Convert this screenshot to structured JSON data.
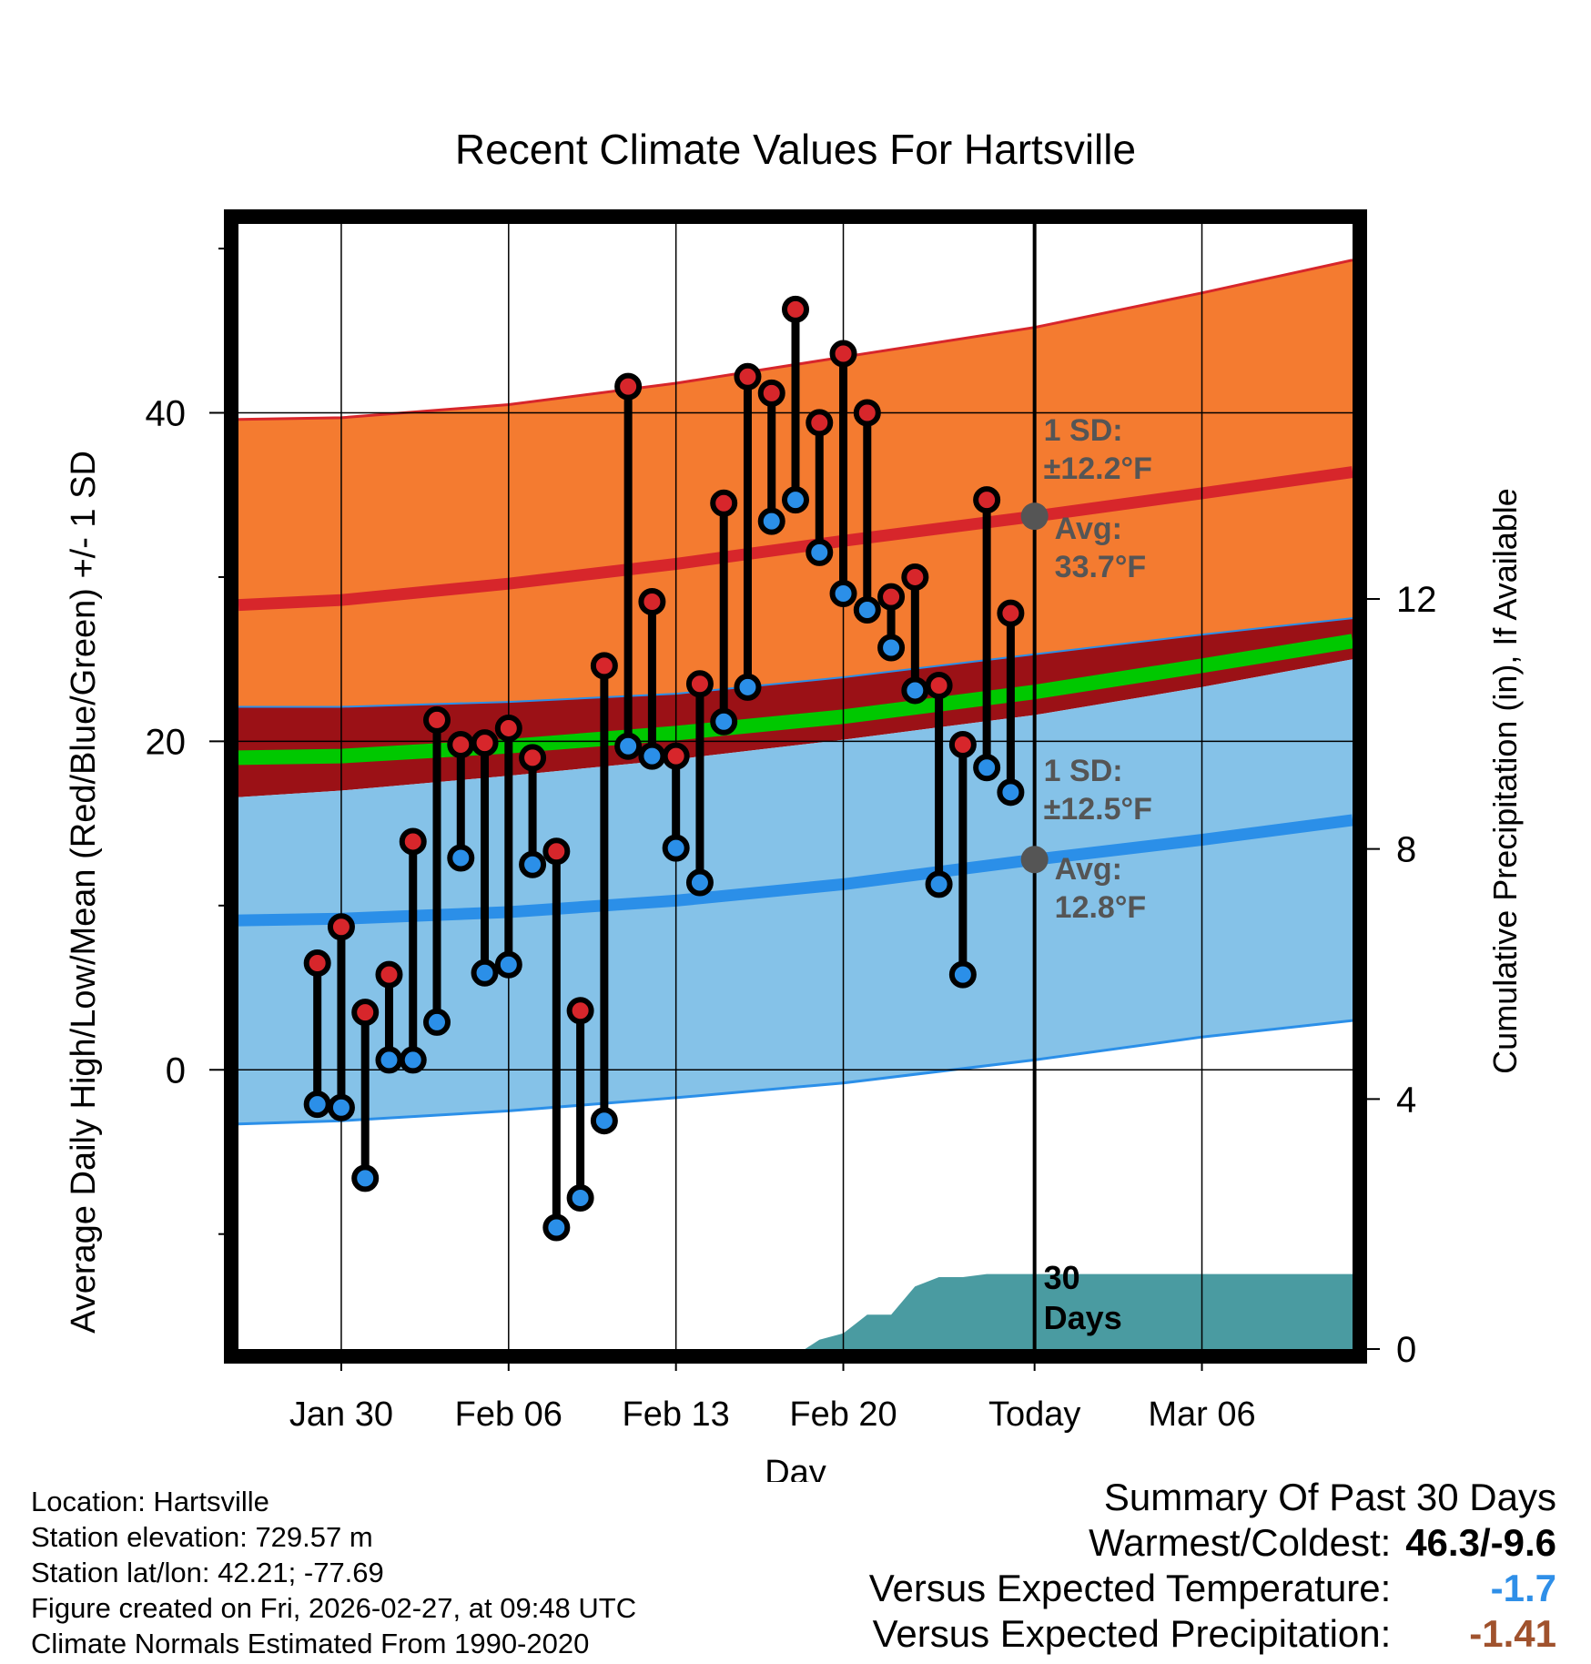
{
  "chart_data": {
    "type": "line",
    "title": "Recent Climate Values For Hartsville",
    "xlabel": "Day",
    "ylabel": "Average Daily High/Low/Mean (Red/Blue/Green) +/- 1 SD",
    "y2label": "Cumulative Precipitation (in), If Available",
    "x_range_days": [
      -33.3,
      13.3
    ],
    "ylim": [
      -17,
      51.5
    ],
    "y_ticks": [
      0,
      20,
      40
    ],
    "y2_range": [
      0,
      18
    ],
    "y2_ticks": [
      0,
      4,
      8,
      12
    ],
    "x_ticks": [
      {
        "day": -29,
        "label": "Jan 30"
      },
      {
        "day": -22,
        "label": "Feb 06"
      },
      {
        "day": -15,
        "label": "Feb 13"
      },
      {
        "day": -8,
        "label": "Feb 20"
      },
      {
        "day": 0,
        "label": "Today"
      },
      {
        "day": 7,
        "label": "Mar 06"
      }
    ],
    "normals_days": [
      -33.3,
      -29,
      -22,
      -15,
      -8,
      0,
      7,
      13.3
    ],
    "normal_high_avg": [
      28.3,
      28.6,
      29.6,
      30.8,
      32.2,
      33.7,
      35.1,
      36.4
    ],
    "normal_high_upper": [
      39.6,
      39.7,
      40.5,
      41.8,
      43.4,
      45.2,
      47.3,
      49.3
    ],
    "normal_mean_upper": [
      22.1,
      22.1,
      22.4,
      22.9,
      23.9,
      25.3,
      26.5,
      27.5
    ],
    "normal_mean_avg": [
      19.0,
      19.1,
      19.7,
      20.5,
      21.5,
      23.0,
      24.6,
      26.1
    ],
    "normal_mean_lower": [
      16.6,
      17.0,
      17.9,
      18.9,
      20.1,
      21.6,
      23.3,
      25.0
    ],
    "normal_low_avg": [
      9.1,
      9.2,
      9.6,
      10.3,
      11.3,
      12.8,
      14.0,
      15.2
    ],
    "normal_low_lower": [
      -3.3,
      -3.1,
      -2.5,
      -1.7,
      -0.8,
      0.6,
      2.0,
      3.0
    ],
    "series": [
      {
        "name": "Daily High",
        "color": "#d7262b",
        "days": [
          -30,
          -29,
          -28,
          -27,
          -26,
          -25,
          -24,
          -23,
          -22,
          -21,
          -20,
          -19,
          -18,
          -17,
          -16,
          -15,
          -14,
          -13,
          -12,
          -11,
          -10,
          -9,
          -8,
          -7,
          -6,
          -5,
          -4,
          -3,
          -2,
          -1
        ],
        "values": [
          6.5,
          8.7,
          3.5,
          5.8,
          13.9,
          21.3,
          19.8,
          19.9,
          20.8,
          19.0,
          13.3,
          3.6,
          24.6,
          41.6,
          28.5,
          19.1,
          23.5,
          34.5,
          42.2,
          41.2,
          46.3,
          39.4,
          43.6,
          40.0,
          28.8,
          30.0,
          23.4,
          19.8,
          34.7,
          27.8
        ]
      },
      {
        "name": "Daily Low",
        "color": "#2b8fe8",
        "days": [
          -30,
          -29,
          -28,
          -27,
          -26,
          -25,
          -24,
          -23,
          -22,
          -21,
          -20,
          -19,
          -18,
          -17,
          -16,
          -15,
          -14,
          -13,
          -12,
          -11,
          -10,
          -9,
          -8,
          -7,
          -6,
          -5,
          -4,
          -3,
          -2,
          -1
        ],
        "values": [
          -2.1,
          -2.3,
          -6.6,
          0.6,
          0.6,
          2.9,
          12.9,
          5.9,
          6.4,
          12.5,
          -9.6,
          -7.8,
          -3.1,
          19.7,
          19.1,
          13.5,
          11.4,
          21.2,
          23.3,
          33.4,
          34.7,
          31.5,
          29.0,
          28.0,
          25.7,
          23.1,
          11.3,
          5.8,
          18.4,
          16.9
        ]
      },
      {
        "name": "Cumulative Precipitation",
        "color": "#4a9ba1",
        "days": [
          -9.6,
          -9,
          -8,
          -7.5,
          -7,
          -6,
          -5,
          -4,
          -3,
          -2,
          -1,
          0,
          1,
          2,
          3,
          4,
          5,
          6,
          7,
          8,
          9,
          10,
          11,
          12,
          13.3
        ],
        "values": [
          0,
          0.15,
          0.25,
          0.4,
          0.55,
          0.55,
          1.0,
          1.15,
          1.15,
          1.2,
          1.2,
          1.2,
          1.2,
          1.2,
          1.2,
          1.2,
          1.2,
          1.2,
          1.2,
          1.2,
          1.2,
          1.2,
          1.2,
          1.2,
          1.2
        ]
      }
    ],
    "annotations": {
      "high_sd_label": "1 SD:",
      "high_sd_value": "±12.2°F",
      "high_avg_label": "Avg:",
      "high_avg_value": "33.7°F",
      "low_sd_label": "1 SD:",
      "low_sd_value": "±12.5°F",
      "low_avg_label": "Avg:",
      "low_avg_value": "12.8°F",
      "window_count": "30",
      "window_label": "Days"
    },
    "colors": {
      "high_band": "#f47b30",
      "high_line": "#d7262b",
      "mean_band": "#9b1116",
      "mean_line": "#00c800",
      "low_band": "#85c2e8",
      "low_line": "#2b8fe8",
      "precip": "#4a9ba1",
      "marker_today": "#555555",
      "annotation_text": "#555555"
    }
  },
  "info": {
    "location": "Location: Hartsville",
    "elevation": "Station elevation: 729.57 m",
    "latlon": "Station lat/lon: 42.21; -77.69",
    "created": "Figure created on Fri, 2026-02-27, at 09:48 UTC",
    "normals": "Climate Normals Estimated From 1990-2020"
  },
  "summary": {
    "title": "Summary Of Past 30 Days",
    "warmest_label": "Warmest/Coldest:",
    "warmest_value": "46.3/-9.6",
    "temp_label": "Versus Expected Temperature:",
    "temp_value": "-1.7",
    "precip_label": "Versus Expected Precipitation:",
    "precip_value": "-1.41"
  }
}
